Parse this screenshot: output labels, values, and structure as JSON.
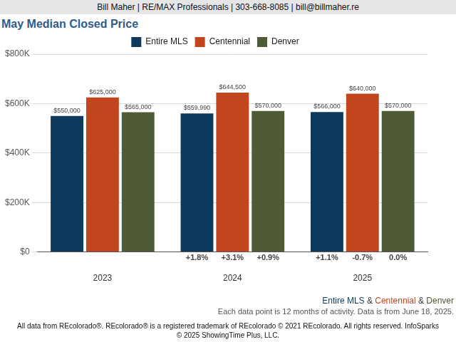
{
  "chart_data": {
    "type": "bar",
    "header": "Bill Maher | RE/MAX Professionals | 303-668-8085 | bill@billmaher.re",
    "title": "May Median Closed Price",
    "categories": [
      "2023",
      "2024",
      "2025"
    ],
    "series": [
      {
        "name": "Entire MLS",
        "color": "#0d3a5c",
        "values": [
          550000,
          559990,
          566000
        ],
        "value_labels": [
          "$550,000",
          "$559,990",
          "$566,000"
        ],
        "changes": [
          null,
          "+1.8%",
          "+1.1%"
        ]
      },
      {
        "name": "Centennial",
        "color": "#c1461e",
        "values": [
          625000,
          644500,
          640000
        ],
        "value_labels": [
          "$625,000",
          "$644,500",
          "$640,000"
        ],
        "changes": [
          null,
          "+3.1%",
          "-0.7%"
        ]
      },
      {
        "name": "Denver",
        "color": "#4f5a37",
        "values": [
          565000,
          570000,
          570000
        ],
        "value_labels": [
          "$565,000",
          "$570,000",
          "$570,000"
        ],
        "changes": [
          null,
          "+0.9%",
          "0.0%"
        ]
      }
    ],
    "ylim": [
      0,
      800000
    ],
    "yticks": [
      {
        "value": 0,
        "label": "$0"
      },
      {
        "value": 200000,
        "label": "$200K"
      },
      {
        "value": 400000,
        "label": "$400K"
      },
      {
        "value": 600000,
        "label": "$600K"
      },
      {
        "value": 800000,
        "label": "$800K"
      }
    ],
    "grid": true,
    "legend": "top",
    "data_labels": true,
    "series_note": "Entire MLS & Centennial & Denver",
    "note": "Each data point is 12 months of activity. Data is from June 18, 2025.",
    "footer": "All data from REcolorado®. REcolorado® is a registered trademark of REcolorado © 2021 REcolorado. All rights reserved. InfoSparks © 2025 ShowingTime Plus, LLC."
  }
}
